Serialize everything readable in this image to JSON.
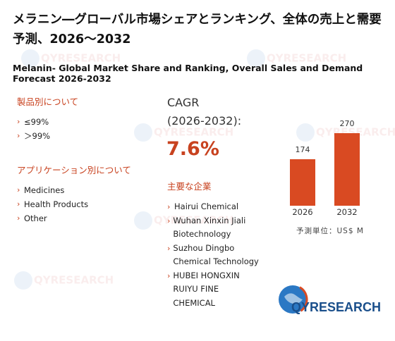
{
  "title_ja": "メラニン―グローバル市場シェアとランキング、全体の売上と需要予測、2026～2032",
  "title_en": "Melanin- Global Market Share and Ranking, Overall Sales and Demand Forecast 2026-2032",
  "by_product": {
    "heading": "製品別について",
    "items": [
      "≤99%",
      "＞99%"
    ]
  },
  "by_application": {
    "heading": "アプリケーション別について",
    "items": [
      "Medicines",
      "Health Products",
      "Other"
    ]
  },
  "cagr": {
    "label": "CAGR",
    "period": "(2026-2032):",
    "value": "7.6%"
  },
  "companies": {
    "heading": "主要な企業",
    "items": [
      "Hairui Chemical",
      "Wuhan Xinxin Jiali Biotechnology",
      "Suzhou Dingbo Chemical Technology",
      "HUBEI HONGXIN RUIYU FINE CHEMICAL"
    ]
  },
  "chart_data": {
    "type": "bar",
    "categories": [
      "2026",
      "2032"
    ],
    "values": [
      174,
      270
    ],
    "unit_label": "予測単位：US$ M",
    "bar_color": "#d94a22"
  },
  "logo": {
    "text_q": "QY",
    "text_rest": "RESEARCH"
  },
  "watermark": "QYRESEARCH",
  "colors": {
    "accent": "#c8421f",
    "brand": "#1a4f8b"
  }
}
